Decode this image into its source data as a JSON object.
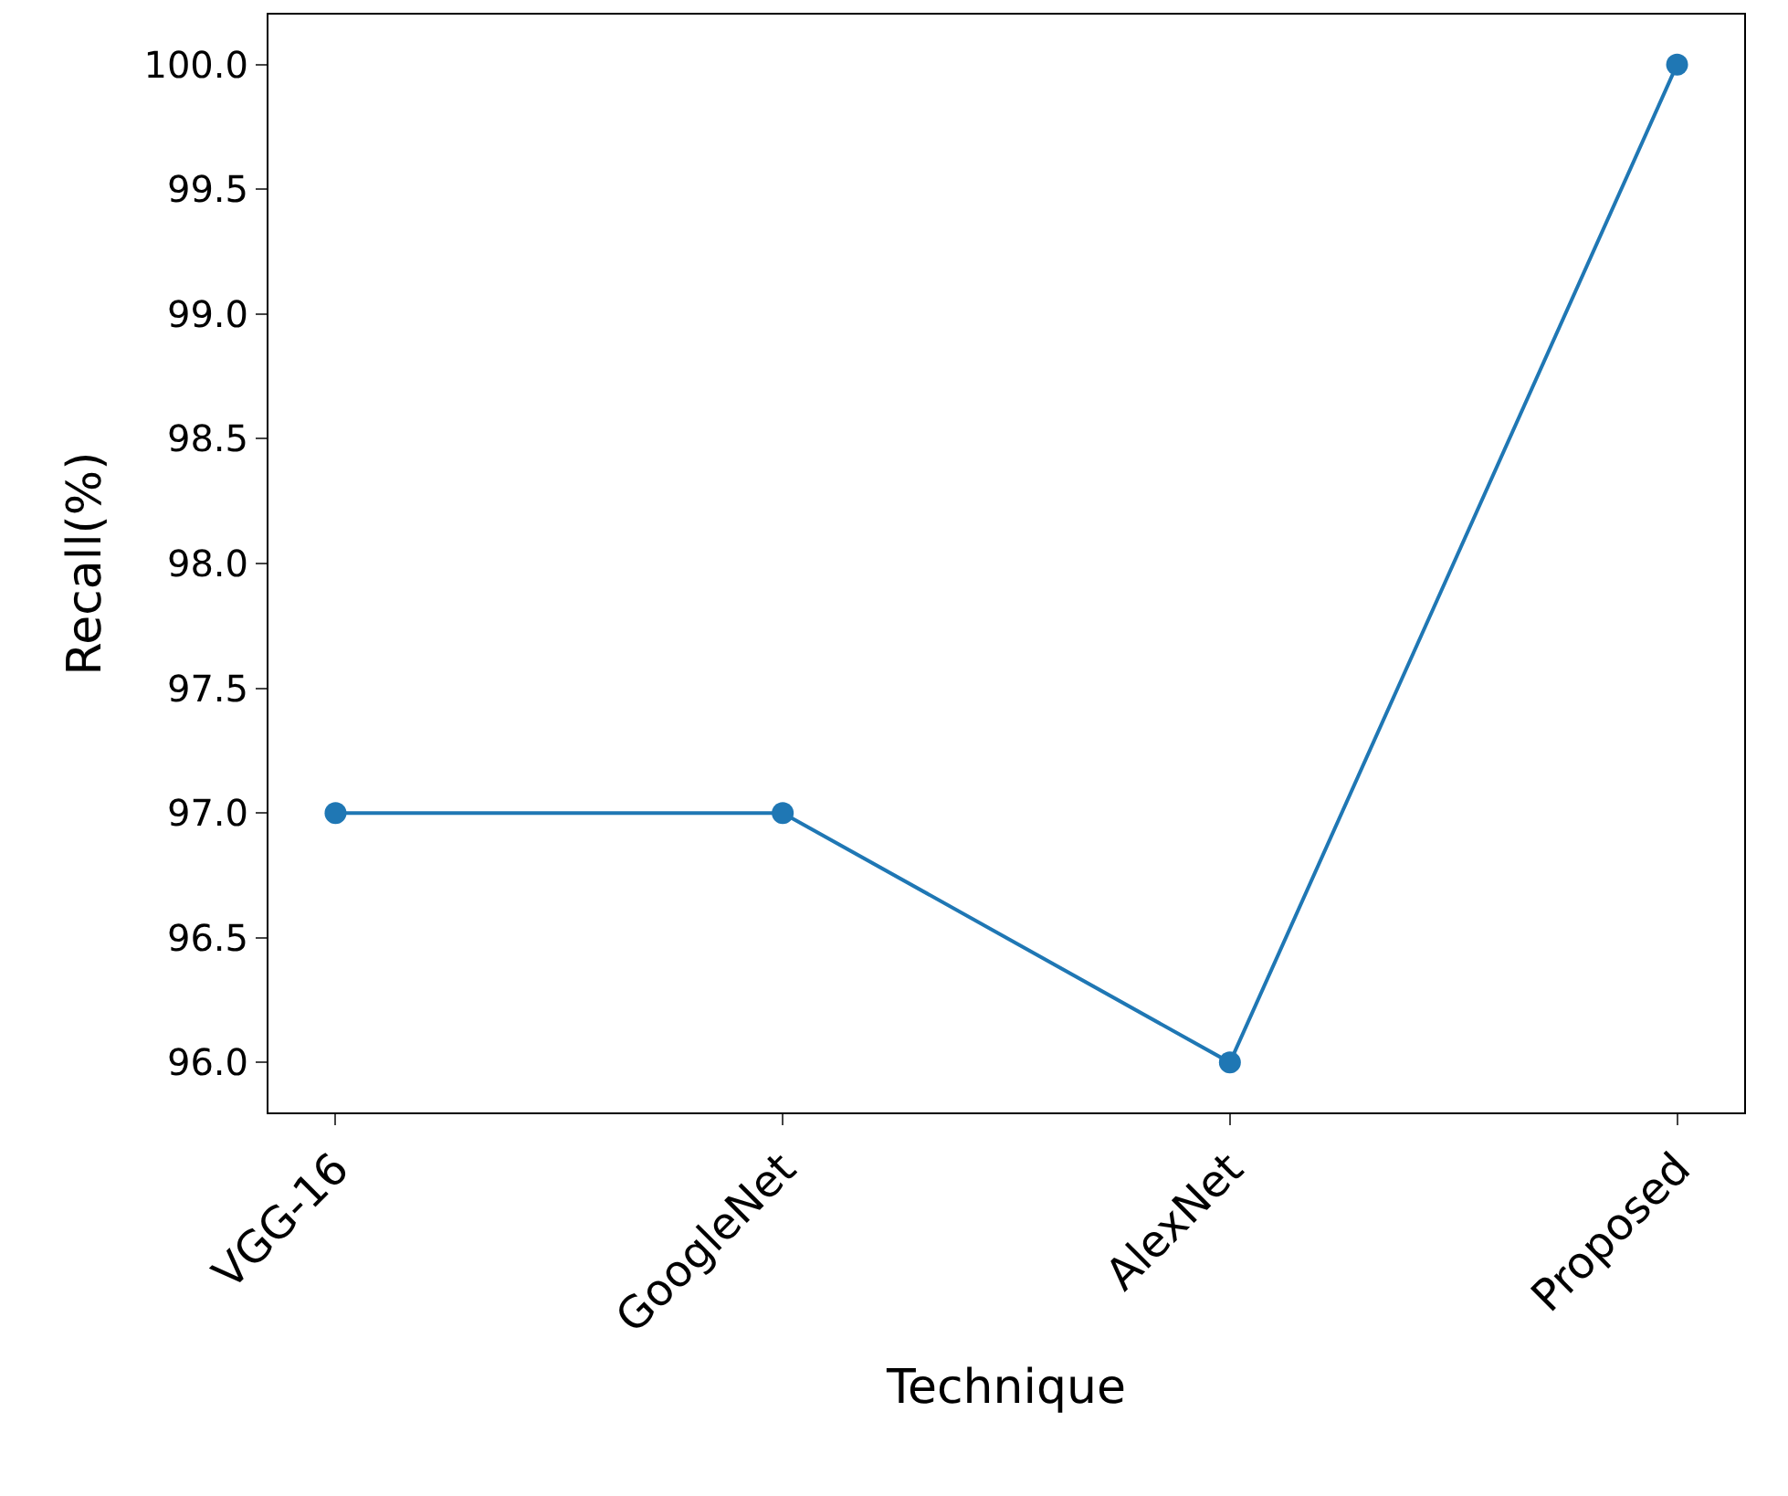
{
  "chart_data": {
    "type": "line",
    "xlabel": "Technique",
    "ylabel": "Recall(%)",
    "categories": [
      "VGG-16",
      "GoogleNet",
      "AlexNet",
      "Proposed"
    ],
    "series": [
      {
        "color": "#1f77b4",
        "values": [
          97,
          97,
          96,
          100
        ]
      }
    ],
    "ylim": [
      95.8,
      100.2
    ],
    "yticks": [
      {
        "value": 96,
        "label": "96.0"
      },
      96.5,
      {
        "value": 97,
        "label": "97.0"
      },
      97.5,
      {
        "value": 98,
        "label": "98.0"
      },
      98.5,
      {
        "value": 99,
        "label": "99.0"
      },
      99.5,
      {
        "value": 100,
        "label": "100.0"
      }
    ],
    "marker": "circle",
    "line_style": "solid"
  }
}
